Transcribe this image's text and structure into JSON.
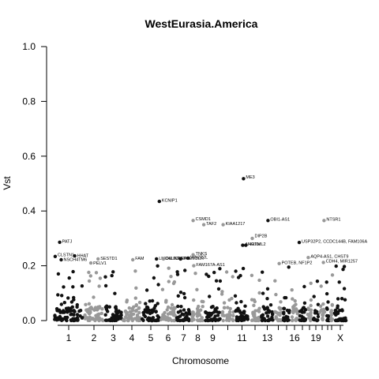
{
  "chart_data": {
    "type": "scatter",
    "title": "WestEurasia.America",
    "xlabel": "Chromosome",
    "ylabel": "Vst",
    "ylim": [
      0,
      1
    ],
    "yticks": [
      "0.0",
      "0.2",
      "0.4",
      "0.6",
      "0.8",
      "1.0"
    ],
    "ytick_values": [
      0,
      0.2,
      0.4,
      0.6,
      0.8,
      1.0
    ],
    "grid": false,
    "colors": {
      "odd": "#111111",
      "even": "#999999"
    },
    "chromosomes": [
      {
        "chr": "1",
        "label": "1",
        "start": 68,
        "end": 106
      },
      {
        "chr": "2",
        "label": "2",
        "start": 106,
        "end": 132
      },
      {
        "chr": "3",
        "label": "3",
        "start": 132,
        "end": 155
      },
      {
        "chr": "4",
        "label": "4",
        "start": 155,
        "end": 179
      },
      {
        "chr": "5",
        "label": "5",
        "start": 179,
        "end": 203
      },
      {
        "chr": "6",
        "label": "6",
        "start": 203,
        "end": 223
      },
      {
        "chr": "7",
        "label": "7",
        "start": 223,
        "end": 242
      },
      {
        "chr": "8",
        "label": "8",
        "start": 242,
        "end": 259
      },
      {
        "chr": "9",
        "label": "9",
        "start": 259,
        "end": 280
      },
      {
        "chr": "10",
        "label": "",
        "start": 280,
        "end": 297
      },
      {
        "chr": "11",
        "label": "11",
        "start": 297,
        "end": 316
      },
      {
        "chr": "12",
        "label": "",
        "start": 316,
        "end": 330
      },
      {
        "chr": "13",
        "label": "13",
        "start": 330,
        "end": 347
      },
      {
        "chr": "14",
        "label": "",
        "start": 347,
        "end": 358
      },
      {
        "chr": "15",
        "label": "",
        "start": 358,
        "end": 368
      },
      {
        "chr": "16",
        "label": "16",
        "start": 368,
        "end": 378
      },
      {
        "chr": "17",
        "label": "",
        "start": 378,
        "end": 388
      },
      {
        "chr": "18",
        "label": "",
        "start": 388,
        "end": 396
      },
      {
        "chr": "19",
        "label": "19",
        "start": 396,
        "end": 404
      },
      {
        "chr": "20",
        "label": "",
        "start": 404,
        "end": 412
      },
      {
        "chr": "21",
        "label": "",
        "start": 412,
        "end": 418
      },
      {
        "chr": "22",
        "label": "",
        "start": 418,
        "end": 422
      },
      {
        "chr": "X",
        "label": "X",
        "start": 422,
        "end": 440
      }
    ],
    "annotated_points": [
      {
        "label": "PATJ",
        "chr": "1",
        "pos": 0.2,
        "y": 0.286,
        "ly": 0.29
      },
      {
        "label": "CLSTN1",
        "chr": "1",
        "pos": 0.05,
        "y": 0.234,
        "ly": 0.24
      },
      {
        "label": "HHAT",
        "chr": "1",
        "pos": 0.7,
        "y": 0.236,
        "ly": 0.238
      },
      {
        "label": "NSCH4TM6",
        "chr": "1",
        "pos": 0.25,
        "y": 0.222,
        "ly": 0.224
      },
      {
        "label": "PELV1",
        "chr": "2",
        "pos": 0.35,
        "y": 0.21,
        "ly": 0.21
      },
      {
        "label": "SESTD1",
        "chr": "2",
        "pos": 0.7,
        "y": 0.225,
        "ly": 0.228
      },
      {
        "label": "FAM",
        "chr": "4",
        "pos": 0.55,
        "y": 0.222,
        "ly": 0.228
      },
      {
        "label": "LMO4LINRNA",
        "chr": "5",
        "pos": 0.8,
        "y": 0.225,
        "ly": 0.228
      },
      {
        "label": "KCNIP1",
        "chr": "5",
        "pos": 0.95,
        "y": 0.435,
        "ly": 0.44
      },
      {
        "label": "DLLICNF",
        "chr": "6",
        "pos": 0.2,
        "y": 0.225,
        "ly": 0.228
      },
      {
        "label": "TMEM2LR",
        "chr": "7",
        "pos": 0.3,
        "y": 0.225,
        "ly": 0.228
      },
      {
        "label": "WN2P2L",
        "chr": "7",
        "pos": 0.8,
        "y": 0.228,
        "ly": 0.232
      },
      {
        "label": "TNKS",
        "chr": "8",
        "pos": 0.15,
        "y": 0.24,
        "ly": 0.245
      },
      {
        "label": "FAM167A-AS1",
        "chr": "8",
        "pos": 0.2,
        "y": 0.2,
        "ly": 0.205
      },
      {
        "label": "CSMD1",
        "chr": "8",
        "pos": 0.15,
        "y": 0.365,
        "ly": 0.372
      },
      {
        "label": "TAF2",
        "chr": "8",
        "pos": 0.95,
        "y": 0.35,
        "ly": 0.355
      },
      {
        "label": "KIAA1217",
        "chr": "10",
        "pos": 0.15,
        "y": 0.35,
        "ly": 0.355
      },
      {
        "label": "ME3",
        "chr": "11",
        "pos": 0.6,
        "y": 0.518,
        "ly": 0.525
      },
      {
        "label": "AHOTM",
        "chr": "11",
        "pos": 0.55,
        "y": 0.275,
        "ly": 0.28
      },
      {
        "label": "NRXML2",
        "chr": "11",
        "pos": 0.75,
        "y": 0.275,
        "ly": 0.28
      },
      {
        "label": "DIP2B",
        "chr": "12",
        "pos": 0.25,
        "y": 0.3,
        "ly": 0.31
      },
      {
        "label": "OBI1-AS1",
        "chr": "13",
        "pos": 0.55,
        "y": 0.365,
        "ly": 0.37
      },
      {
        "label": "POTEB, NF1P2",
        "chr": "14",
        "pos": 0.6,
        "y": 0.208,
        "ly": 0.212
      },
      {
        "label": "USP32P2, CCDC144B, FAM106A",
        "chr": "17",
        "pos": 0.1,
        "y": 0.285,
        "ly": 0.29
      },
      {
        "label": "AQP4-AS1, CHST9",
        "chr": "18",
        "pos": 0.3,
        "y": 0.23,
        "ly": 0.235
      },
      {
        "label": "CDH4, MIR1257",
        "chr": "20",
        "pos": 0.7,
        "y": 0.212,
        "ly": 0.218
      },
      {
        "label": "NTSR1",
        "chr": "20",
        "pos": 0.8,
        "y": 0.365,
        "ly": 0.37
      }
    ]
  }
}
